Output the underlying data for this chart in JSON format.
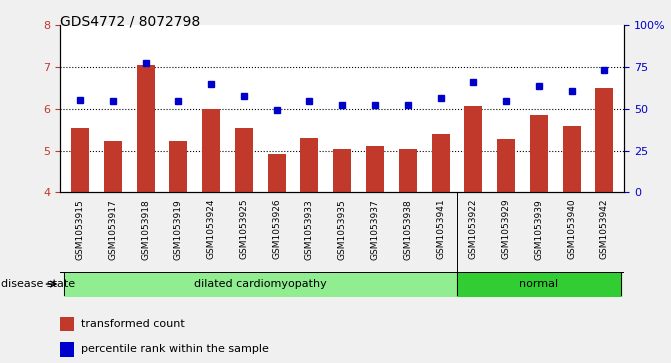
{
  "title": "GDS4772 / 8072798",
  "samples": [
    "GSM1053915",
    "GSM1053917",
    "GSM1053918",
    "GSM1053919",
    "GSM1053924",
    "GSM1053925",
    "GSM1053926",
    "GSM1053933",
    "GSM1053935",
    "GSM1053937",
    "GSM1053938",
    "GSM1053941",
    "GSM1053922",
    "GSM1053929",
    "GSM1053939",
    "GSM1053940",
    "GSM1053942"
  ],
  "bar_values": [
    5.55,
    5.22,
    7.05,
    5.22,
    6.0,
    5.55,
    4.92,
    5.3,
    5.05,
    5.1,
    5.05,
    5.4,
    6.08,
    5.28,
    5.85,
    5.6,
    6.5
  ],
  "dot_values": [
    6.22,
    6.18,
    7.1,
    6.18,
    6.6,
    6.32,
    5.98,
    6.2,
    6.1,
    6.1,
    6.1,
    6.25,
    6.65,
    6.2,
    6.55,
    6.42,
    6.92
  ],
  "bar_color": "#C0392B",
  "dot_color": "#0000CC",
  "ylim_left": [
    4,
    8
  ],
  "ylim_right": [
    0,
    100
  ],
  "yticks_left": [
    4,
    5,
    6,
    7,
    8
  ],
  "yticks_right": [
    0,
    25,
    50,
    75,
    100
  ],
  "disease_groups": [
    {
      "label": "dilated cardiomyopathy",
      "start": 0,
      "end": 12,
      "color": "#90EE90"
    },
    {
      "label": "normal",
      "start": 12,
      "end": 17,
      "color": "#32CD32"
    }
  ],
  "disease_state_label": "disease state",
  "legend_items": [
    {
      "color": "#C0392B",
      "label": "transformed count"
    },
    {
      "color": "#0000CC",
      "label": "percentile rank within the sample"
    }
  ],
  "bar_width": 0.55,
  "fig_bg": "#F0F0F0",
  "plot_bg": "#FFFFFF",
  "label_area_bg": "#D8D8D8"
}
